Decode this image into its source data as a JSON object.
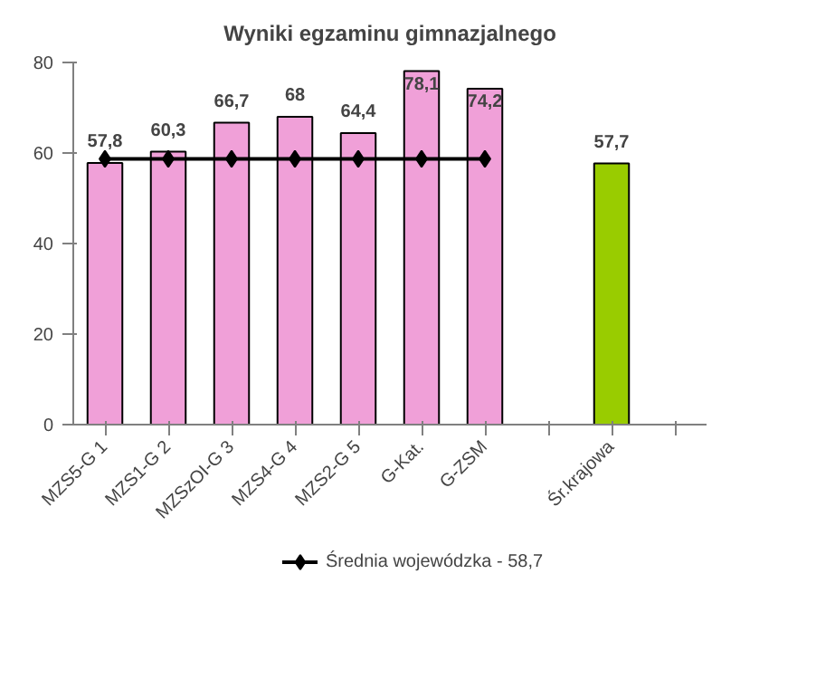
{
  "chart_data": {
    "type": "bar",
    "title": "Wyniki egzaminu gimnazjalnego",
    "categories": [
      "MZS5-G 1",
      "MZS1-G 2",
      "MZSzOI-G 3",
      "MZS4-G 4",
      "MZS2-G 5",
      "G-Kat.",
      "G-ZSM",
      null,
      "Śr.krajowa",
      null
    ],
    "series": [
      {
        "colors": [
          "#f0a0d8",
          "#f0a0d8",
          "#f0a0d8",
          "#f0a0d8",
          "#f0a0d8",
          "#f0a0d8",
          "#f0a0d8",
          null,
          "#99cc00",
          null
        ],
        "values": [
          57.8,
          60.3,
          66.7,
          68,
          64.4,
          78.1,
          74.2,
          null,
          57.7,
          null
        ],
        "value_labels": [
          "57,8",
          "60,3",
          "66,7",
          "68",
          "64,4",
          "78,1",
          "74,2",
          null,
          "57,7",
          null
        ]
      },
      {
        "type": "line",
        "name": "Średnia wojewódzka - 58,7",
        "color": "#000000",
        "marker": "diamond",
        "values": [
          58.7,
          58.7,
          58.7,
          58.7,
          58.7,
          58.7,
          58.7,
          null,
          null,
          null
        ]
      }
    ],
    "ylim": [
      0,
      80
    ],
    "yticks": [
      0,
      20,
      40,
      60,
      80
    ],
    "grid": false,
    "legend": "bottom"
  }
}
